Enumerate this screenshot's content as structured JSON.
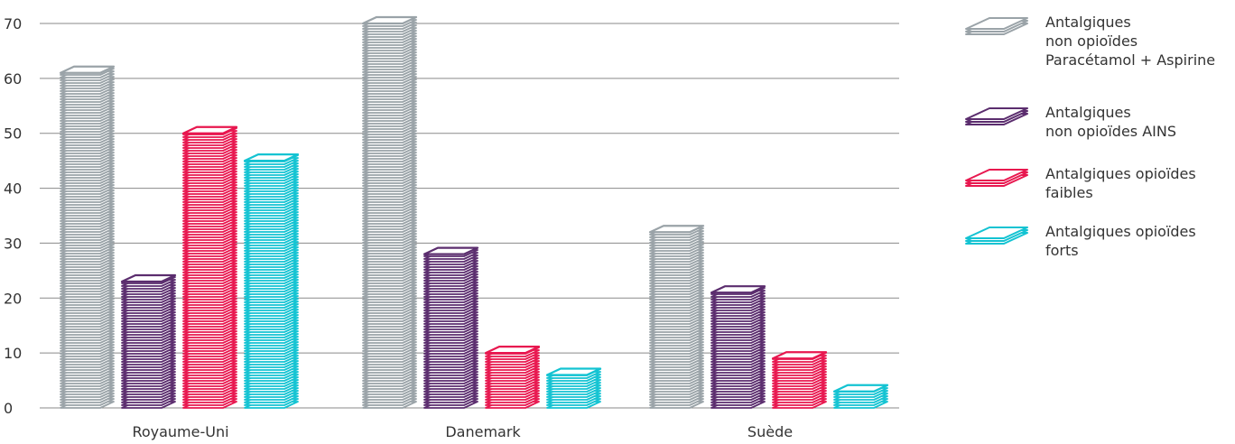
{
  "chart_data": {
    "type": "bar",
    "categories": [
      "Royaume-Uni",
      "Danemark",
      "Suède"
    ],
    "series": [
      {
        "name": "Antalgiques non opioïdes Paracétamol + Aspirine",
        "legend_lines": [
          "Antalgiques",
          "non opioïdes",
          "Paracétamol + Aspirine"
        ],
        "color": "#9aa3a8",
        "values": [
          61,
          70,
          32
        ]
      },
      {
        "name": "Antalgiques non opioïdes AINS",
        "legend_lines": [
          "Antalgiques",
          "non opioïdes AINS"
        ],
        "color": "#5b2d6e",
        "values": [
          23,
          28,
          21
        ]
      },
      {
        "name": "Antalgiques opioïdes faibles",
        "legend_lines": [
          "Antalgiques opioïdes",
          "faibles"
        ],
        "color": "#e8174f",
        "values": [
          50,
          10,
          9
        ]
      },
      {
        "name": "Antalgiques opioïdes forts",
        "legend_lines": [
          "Antalgiques opioïdes",
          "forts"
        ],
        "color": "#13c3d2",
        "values": [
          45,
          6,
          3
        ]
      }
    ],
    "yticks": [
      "0",
      "10",
      "20",
      "30",
      "40",
      "50",
      "60",
      "70"
    ],
    "ylim": [
      0,
      70
    ],
    "grid": true,
    "legend_position": "right",
    "style": "3d stacked-disc bars"
  }
}
